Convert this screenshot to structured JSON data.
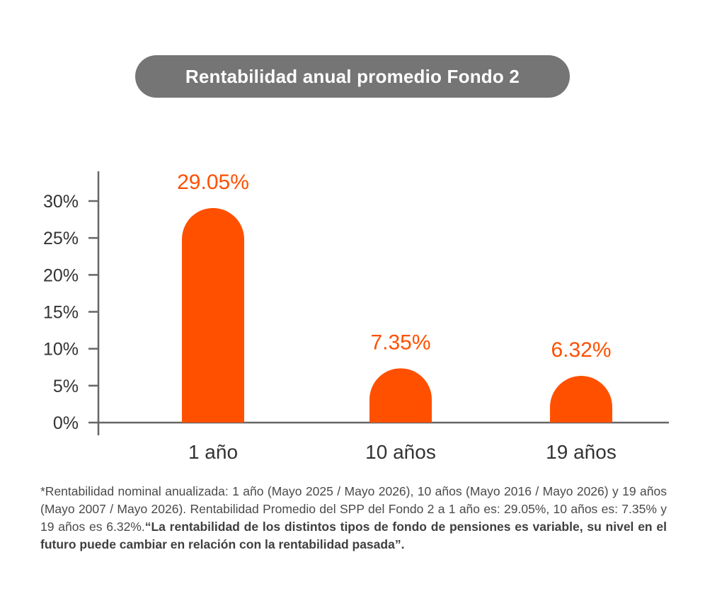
{
  "header": {
    "title": "Rentabilidad anual promedio Fondo 2"
  },
  "chart_data": {
    "type": "bar",
    "categories": [
      "1 año",
      "10 años",
      "19 años"
    ],
    "values": [
      29.05,
      7.35,
      6.32
    ],
    "value_labels": [
      "29.05%",
      "7.35%",
      "6.32%"
    ],
    "yticks": [
      "0%",
      "5%",
      "10%",
      "15%",
      "20%",
      "25%",
      "30%"
    ],
    "ytick_values": [
      0,
      5,
      10,
      15,
      20,
      25,
      30
    ],
    "ylim": [
      0,
      30
    ],
    "title": "Rentabilidad anual promedio Fondo 2",
    "xlabel": "",
    "ylabel": "",
    "grid": false,
    "bar_color": "#ff5000",
    "label_color": "#ff5000",
    "axis_color": "#666666"
  },
  "footnote": {
    "normal": "*Rentabilidad nominal anualizada: 1 año (Mayo 2025 / Mayo 2026), 10 años (Mayo 2016 / Mayo 2026) y 19 años (Mayo 2007 / Mayo 2026). Rentabilidad Promedio del SPP del Fondo 2 a 1 año es: 29.05%, 10 años es: 7.35% y 19 años es 6.32%.",
    "bold": "“La rentabilidad de los distintos tipos de fondo de pensiones es variable, su nivel en el futuro puede cambiar en relación con la rentabilidad pasada”."
  }
}
